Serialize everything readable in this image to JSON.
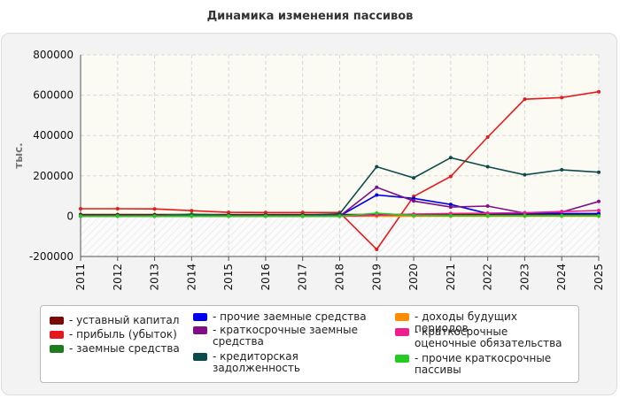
{
  "chart_data": {
    "type": "line",
    "title": "Динамика изменения пассивов",
    "ylabel": "тыс.",
    "xlabel": "",
    "x": [
      "2011",
      "2012",
      "2013",
      "2014",
      "2015",
      "2016",
      "2017",
      "2018",
      "2019",
      "2020",
      "2021",
      "2022",
      "2023",
      "2024",
      "2025"
    ],
    "ylim": [
      -200000,
      800000
    ],
    "yticks": [
      -200000,
      0,
      200000,
      400000,
      600000,
      800000
    ],
    "ytick_labels": [
      "-200000",
      "0",
      "200000",
      "400000",
      "600000",
      "800000"
    ],
    "grid": true,
    "legend_position": "bottom",
    "series": [
      {
        "name": "- уставный капитал",
        "color": "#7b0a0a",
        "values": [
          8000,
          8000,
          8000,
          8000,
          8000,
          8000,
          8000,
          8000,
          8000,
          8000,
          8000,
          8000,
          8000,
          8000,
          8000
        ]
      },
      {
        "name": "- прибыль (убыток)",
        "color": "#e41a1c",
        "values": [
          37000,
          37000,
          36000,
          27000,
          19000,
          18000,
          18000,
          18000,
          -165000,
          98000,
          197000,
          392000,
          580000,
          588000,
          617000
        ]
      },
      {
        "name": "- заемные средства",
        "color": "#1e7b1e",
        "values": [
          2000,
          2000,
          3000,
          10000,
          5000,
          4000,
          4000,
          4000,
          4000,
          4000,
          4000,
          4000,
          4000,
          4000,
          4000
        ]
      },
      {
        "name": "- прочие заемные средства",
        "color": "#0000ee",
        "values": [
          1000,
          1000,
          1000,
          1000,
          1000,
          1000,
          1000,
          1000,
          105000,
          88000,
          58000,
          13000,
          13000,
          13000,
          13000
        ]
      },
      {
        "name": "- краткосрочные заемные средства",
        "color": "#7e0f87",
        "values": [
          0,
          0,
          0,
          0,
          0,
          0,
          0,
          0,
          143000,
          75000,
          45000,
          50000,
          15000,
          20000,
          73000
        ]
      },
      {
        "name": "- кредиторская задолженность",
        "color": "#0d4a4a",
        "values": [
          4000,
          4000,
          4000,
          5000,
          5000,
          5000,
          5000,
          12000,
          245000,
          190000,
          290000,
          245000,
          205000,
          230000,
          218000
        ]
      },
      {
        "name": "- доходы будущих периодов",
        "color": "#ff8c00",
        "values": [
          0,
          0,
          0,
          0,
          0,
          0,
          0,
          0,
          0,
          0,
          0,
          0,
          0,
          0,
          0
        ]
      },
      {
        "name": "- краткосрочные оценочные обязательства",
        "color": "#ee1c8c",
        "values": [
          0,
          0,
          0,
          0,
          0,
          0,
          0,
          0,
          5000,
          10000,
          13000,
          15000,
          17000,
          23000,
          28000
        ]
      },
      {
        "name": "- прочие краткосрочные пассивы",
        "color": "#22cc22",
        "values": [
          0,
          0,
          0,
          0,
          0,
          0,
          0,
          0,
          15000,
          3000,
          2000,
          2000,
          2000,
          2000,
          2000
        ]
      }
    ]
  }
}
